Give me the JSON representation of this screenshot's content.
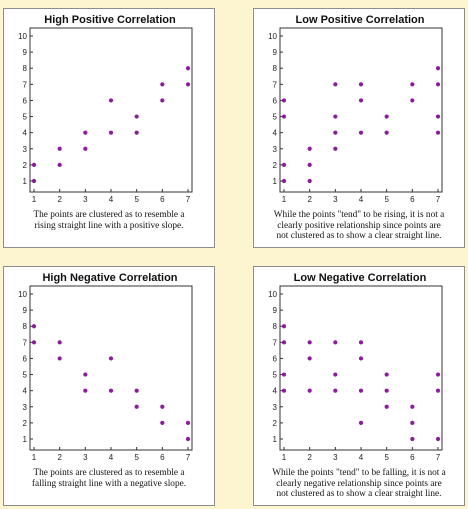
{
  "chart_data": [
    {
      "type": "scatter",
      "title": "High Positive Correlation",
      "xlim": [
        1,
        7
      ],
      "ylim": [
        1,
        10
      ],
      "x_ticks": [
        1,
        2,
        3,
        4,
        5,
        6,
        7
      ],
      "y_ticks": [
        1,
        2,
        3,
        4,
        5,
        6,
        7,
        8,
        9,
        10
      ],
      "grid": false,
      "point_color": "#8b1a9c",
      "points": [
        [
          1,
          1
        ],
        [
          1,
          2
        ],
        [
          2,
          2
        ],
        [
          2,
          3
        ],
        [
          3,
          3
        ],
        [
          3,
          4
        ],
        [
          4,
          4
        ],
        [
          4,
          6
        ],
        [
          5,
          4
        ],
        [
          5,
          5
        ],
        [
          6,
          6
        ],
        [
          6,
          7
        ],
        [
          7,
          7
        ],
        [
          7,
          8
        ]
      ],
      "caption": [
        "The points are clustered as to resemble a",
        "rising straight line with a positive slope."
      ]
    },
    {
      "type": "scatter",
      "title": "Low Positive Correlation",
      "xlim": [
        1,
        7
      ],
      "ylim": [
        1,
        10
      ],
      "x_ticks": [
        1,
        2,
        3,
        4,
        5,
        6,
        7
      ],
      "y_ticks": [
        1,
        2,
        3,
        4,
        5,
        6,
        7,
        8,
        9,
        10
      ],
      "grid": false,
      "point_color": "#8b1a9c",
      "points": [
        [
          1,
          1
        ],
        [
          1,
          2
        ],
        [
          1,
          5
        ],
        [
          1,
          6
        ],
        [
          2,
          1
        ],
        [
          2,
          2
        ],
        [
          2,
          3
        ],
        [
          3,
          3
        ],
        [
          3,
          4
        ],
        [
          3,
          5
        ],
        [
          3,
          7
        ],
        [
          4,
          4
        ],
        [
          4,
          6
        ],
        [
          4,
          7
        ],
        [
          5,
          4
        ],
        [
          5,
          5
        ],
        [
          6,
          6
        ],
        [
          6,
          7
        ],
        [
          7,
          4
        ],
        [
          7,
          5
        ],
        [
          7,
          7
        ],
        [
          7,
          8
        ]
      ],
      "caption": [
        "While the points \"tend\" to be rising, it is not a",
        "clearly positive relationship since points are",
        "not clustered as to show a clear straight line."
      ]
    },
    {
      "type": "scatter",
      "title": "High Negative Correlation",
      "xlim": [
        1,
        7
      ],
      "ylim": [
        1,
        10
      ],
      "x_ticks": [
        1,
        2,
        3,
        4,
        5,
        6,
        7
      ],
      "y_ticks": [
        1,
        2,
        3,
        4,
        5,
        6,
        7,
        8,
        9,
        10
      ],
      "grid": false,
      "point_color": "#8b1a9c",
      "points": [
        [
          1,
          7
        ],
        [
          1,
          8
        ],
        [
          2,
          6
        ],
        [
          2,
          7
        ],
        [
          3,
          4
        ],
        [
          3,
          5
        ],
        [
          4,
          4
        ],
        [
          4,
          6
        ],
        [
          5,
          3
        ],
        [
          5,
          4
        ],
        [
          6,
          2
        ],
        [
          6,
          3
        ],
        [
          7,
          1
        ],
        [
          7,
          2
        ]
      ],
      "caption": [
        "The points are clustered as to resemble a",
        "falling straight line with a negative slope."
      ]
    },
    {
      "type": "scatter",
      "title": "Low Negative Correlation",
      "xlim": [
        1,
        7
      ],
      "ylim": [
        1,
        10
      ],
      "x_ticks": [
        1,
        2,
        3,
        4,
        5,
        6,
        7
      ],
      "y_ticks": [
        1,
        2,
        3,
        4,
        5,
        6,
        7,
        8,
        9,
        10
      ],
      "grid": false,
      "point_color": "#8b1a9c",
      "points": [
        [
          1,
          4
        ],
        [
          1,
          5
        ],
        [
          1,
          7
        ],
        [
          1,
          8
        ],
        [
          2,
          4
        ],
        [
          2,
          6
        ],
        [
          2,
          7
        ],
        [
          3,
          4
        ],
        [
          3,
          5
        ],
        [
          3,
          7
        ],
        [
          4,
          2
        ],
        [
          4,
          4
        ],
        [
          4,
          6
        ],
        [
          4,
          7
        ],
        [
          5,
          3
        ],
        [
          5,
          4
        ],
        [
          5,
          5
        ],
        [
          6,
          1
        ],
        [
          6,
          2
        ],
        [
          6,
          3
        ],
        [
          7,
          1
        ],
        [
          7,
          4
        ],
        [
          7,
          5
        ]
      ],
      "caption": [
        "While the points \"tend\" to be falling, it is not a",
        "clearly negative relationship since points are",
        "not clustered as to show a clear straight line."
      ]
    }
  ]
}
